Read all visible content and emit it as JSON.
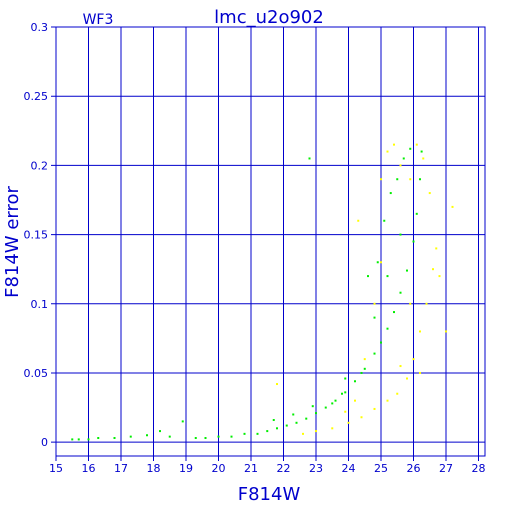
{
  "chart_data": {
    "type": "scatter",
    "title": "lmc_u2o902",
    "subtitle": "WF3",
    "xlabel": "F814W",
    "ylabel": "F814W error",
    "xlim": [
      15,
      28.2
    ],
    "ylim": [
      -0.01,
      0.3
    ],
    "grid": true,
    "x_ticks": [
      15,
      16,
      17,
      18,
      19,
      20,
      21,
      22,
      23,
      24,
      25,
      26,
      27,
      28
    ],
    "y_ticks": [
      0,
      0.05,
      0.1,
      0.15,
      0.2,
      0.25,
      0.3
    ],
    "y_tick_labels": [
      "0",
      "0.05",
      "0.1",
      "0.15",
      "0.2",
      "0.25",
      "0.3"
    ],
    "colors": {
      "axis": "#0000cc",
      "grid": "#0000cc",
      "series_green": "#00ee00",
      "series_yellow": "#ffff00"
    },
    "series": [
      {
        "color": "#00ee00",
        "points": [
          [
            15.5,
            0.002
          ],
          [
            15.7,
            0.002
          ],
          [
            16.0,
            0.002
          ],
          [
            16.3,
            0.003
          ],
          [
            16.8,
            0.003
          ],
          [
            17.3,
            0.004
          ],
          [
            17.8,
            0.005
          ],
          [
            18.2,
            0.008
          ],
          [
            18.5,
            0.004
          ],
          [
            18.9,
            0.015
          ],
          [
            19.3,
            0.003
          ],
          [
            19.6,
            0.003
          ],
          [
            20.0,
            0.004
          ],
          [
            20.4,
            0.004
          ],
          [
            20.8,
            0.006
          ],
          [
            21.2,
            0.006
          ],
          [
            21.5,
            0.008
          ],
          [
            21.8,
            0.01
          ],
          [
            22.1,
            0.012
          ],
          [
            22.4,
            0.014
          ],
          [
            22.7,
            0.017
          ],
          [
            23.0,
            0.021
          ],
          [
            23.3,
            0.025
          ],
          [
            23.6,
            0.03
          ],
          [
            23.9,
            0.036
          ],
          [
            24.2,
            0.044
          ],
          [
            24.5,
            0.053
          ],
          [
            24.8,
            0.064
          ],
          [
            25.0,
            0.072
          ],
          [
            25.2,
            0.082
          ],
          [
            25.4,
            0.094
          ],
          [
            25.6,
            0.108
          ],
          [
            25.8,
            0.124
          ],
          [
            26.0,
            0.145
          ],
          [
            26.1,
            0.165
          ],
          [
            26.2,
            0.19
          ],
          [
            26.25,
            0.21
          ],
          [
            22.8,
            0.205
          ],
          [
            23.8,
            0.035
          ],
          [
            24.6,
            0.12
          ],
          [
            24.9,
            0.13
          ],
          [
            25.1,
            0.16
          ],
          [
            25.3,
            0.18
          ],
          [
            25.5,
            0.19
          ],
          [
            25.7,
            0.205
          ],
          [
            25.9,
            0.212
          ],
          [
            25.6,
            0.15
          ],
          [
            25.2,
            0.12
          ],
          [
            24.8,
            0.09
          ],
          [
            24.4,
            0.05
          ],
          [
            23.9,
            0.046
          ],
          [
            23.5,
            0.028
          ],
          [
            22.9,
            0.026
          ],
          [
            22.3,
            0.02
          ],
          [
            21.7,
            0.016
          ]
        ]
      },
      {
        "color": "#ffff00",
        "points": [
          [
            21.8,
            0.042
          ],
          [
            22.6,
            0.006
          ],
          [
            23.0,
            0.008
          ],
          [
            23.5,
            0.01
          ],
          [
            24.0,
            0.014
          ],
          [
            24.4,
            0.018
          ],
          [
            24.8,
            0.024
          ],
          [
            25.2,
            0.03
          ],
          [
            25.5,
            0.035
          ],
          [
            25.8,
            0.046
          ],
          [
            26.0,
            0.06
          ],
          [
            26.2,
            0.08
          ],
          [
            26.4,
            0.1
          ],
          [
            26.6,
            0.125
          ],
          [
            26.7,
            0.14
          ],
          [
            24.5,
            0.06
          ],
          [
            24.8,
            0.1
          ],
          [
            25.0,
            0.13
          ],
          [
            25.0,
            0.19
          ],
          [
            25.2,
            0.21
          ],
          [
            25.4,
            0.215
          ],
          [
            25.6,
            0.2
          ],
          [
            25.9,
            0.19
          ],
          [
            26.1,
            0.215
          ],
          [
            26.3,
            0.205
          ],
          [
            26.8,
            0.12
          ],
          [
            27.2,
            0.17
          ],
          [
            27.0,
            0.08
          ],
          [
            25.9,
            0.1
          ],
          [
            25.6,
            0.055
          ],
          [
            24.2,
            0.03
          ],
          [
            23.9,
            0.022
          ],
          [
            24.3,
            0.16
          ],
          [
            26.5,
            0.18
          ],
          [
            26.2,
            0.05
          ]
        ]
      }
    ]
  }
}
